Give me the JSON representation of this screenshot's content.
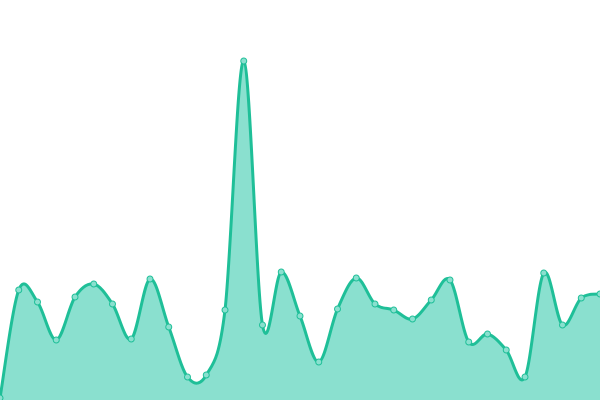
{
  "chart_data": {
    "type": "area",
    "smooth": true,
    "markers": true,
    "grid": false,
    "axes_visible": false,
    "legend": "none",
    "x": [
      0,
      1,
      2,
      3,
      4,
      5,
      6,
      7,
      8,
      9,
      10,
      11,
      12,
      13,
      14,
      15,
      16,
      17,
      18,
      19,
      20,
      21,
      22,
      23,
      24,
      25,
      26,
      27,
      28,
      29,
      30,
      31,
      32
    ],
    "values": [
      2,
      110,
      98,
      60,
      103,
      116,
      96,
      61,
      121,
      73,
      23,
      25,
      90,
      339,
      75,
      128,
      84,
      38,
      91,
      122,
      96,
      90,
      81,
      100,
      120,
      58,
      66,
      50,
      23,
      127,
      75,
      102,
      106
    ],
    "ylim": [
      0,
      400
    ],
    "colors": {
      "line": "#1fbf98",
      "fill": "#8ae0cf",
      "marker_fill": "#8ae0cf",
      "marker_stroke": "#1fbf98"
    }
  }
}
